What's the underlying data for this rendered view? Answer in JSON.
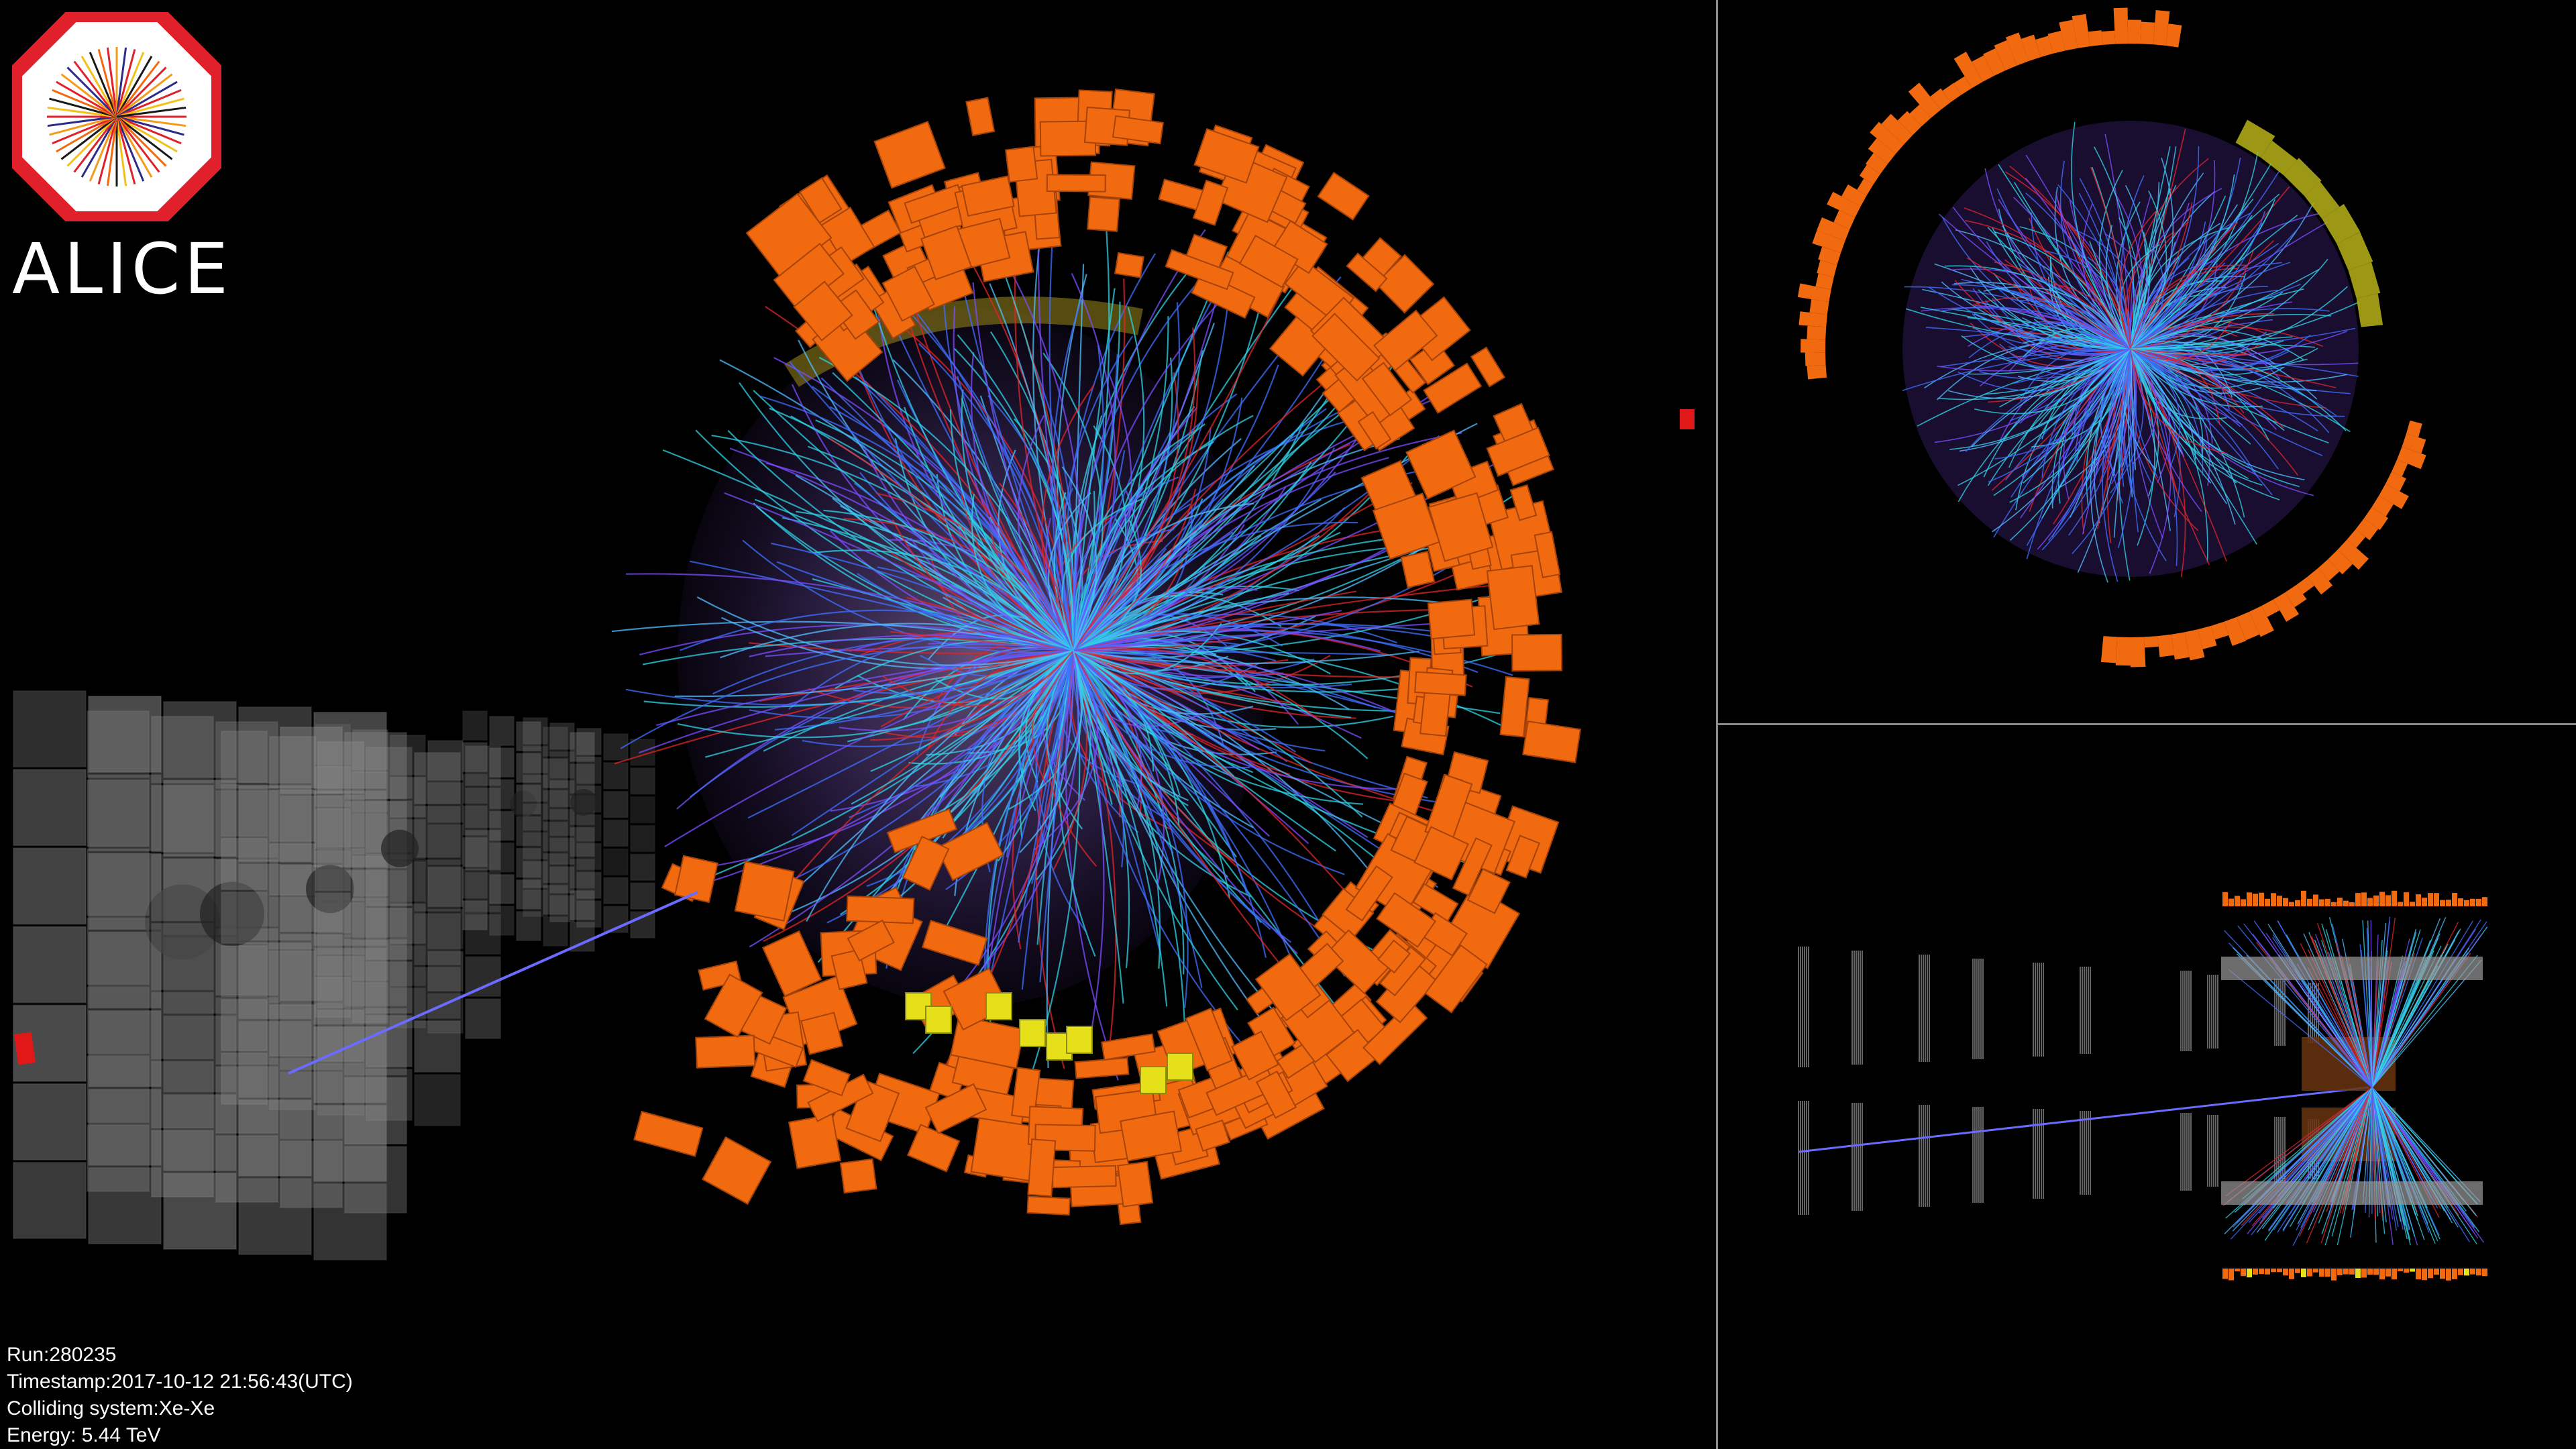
{
  "logo": {
    "text": "ALICE",
    "ring_color": "#e0212b",
    "icon": "alice-octagon-logo-icon"
  },
  "event_info": {
    "run": "Run:280235",
    "timestamp": "Timestamp:2017-10-12 21:56:43(UTC)",
    "colliding_system": "Colliding system:Xe-Xe",
    "energy": "Energy: 5.44 TeV"
  },
  "colors": {
    "background": "#000000",
    "calorimeter": "#f26a10",
    "calorimeter_yellow": "#e6e01a",
    "track_cyan": "#2fd3e6",
    "track_blue": "#3f6fff",
    "track_red": "#e0262a",
    "divider": "#8a8a8a",
    "muon_chambers": "#8c8c8c"
  }
}
